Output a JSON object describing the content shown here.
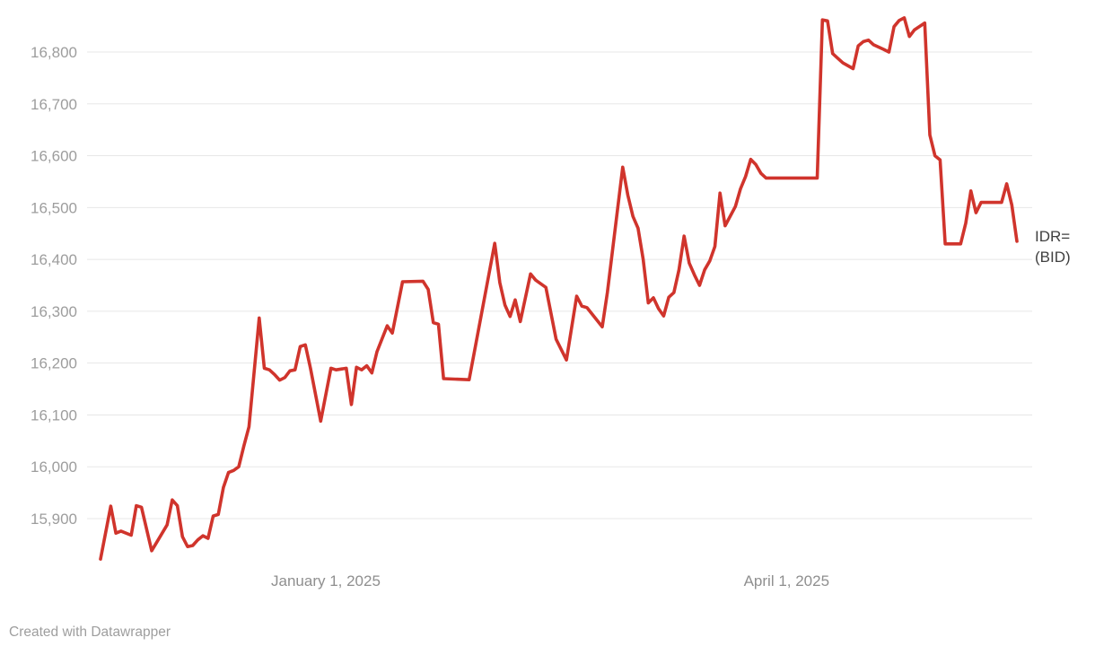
{
  "attribution": {
    "text": "Created with Datawrapper"
  },
  "chart_data": {
    "type": "line",
    "title": "",
    "xlabel": "",
    "ylabel": "",
    "grid": "horizontal-only",
    "legend_position": "line-end-right",
    "colors": {
      "line": "#d0342c",
      "grid": "#e7e7e7",
      "y_tick_label": "#9d9d9d",
      "x_tick_label": "#8f8f8f",
      "end_label": "#404040",
      "background": "#ffffff"
    },
    "x_axis": {
      "range": [
        "2024-11-18",
        "2025-05-16"
      ],
      "ticks": [
        {
          "date": "2025-01-01",
          "label": "January 1, 2025"
        },
        {
          "date": "2025-04-01",
          "label": "April 1, 2025"
        }
      ]
    },
    "y_axis": {
      "range": [
        15790,
        16900
      ],
      "ticks": [
        {
          "v": 15900,
          "label": "15,900"
        },
        {
          "v": 16000,
          "label": "16,000"
        },
        {
          "v": 16100,
          "label": "16,100"
        },
        {
          "v": 16200,
          "label": "16,200"
        },
        {
          "v": 16300,
          "label": "16,300"
        },
        {
          "v": 16400,
          "label": "16,400"
        },
        {
          "v": 16500,
          "label": "16,500"
        },
        {
          "v": 16600,
          "label": "16,600"
        },
        {
          "v": 16700,
          "label": "16,700"
        },
        {
          "v": 16800,
          "label": "16,800"
        }
      ]
    },
    "series": [
      {
        "name": "IDR= (BID)",
        "end_label_lines": [
          "IDR=",
          "(BID)"
        ],
        "points": [
          [
            "2024-11-18",
            15822
          ],
          [
            "2024-11-20",
            15924
          ],
          [
            "2024-11-21",
            15872
          ],
          [
            "2024-11-22",
            15876
          ],
          [
            "2024-11-24",
            15868
          ],
          [
            "2024-11-25",
            15925
          ],
          [
            "2024-11-26",
            15922
          ],
          [
            "2024-11-28",
            15838
          ],
          [
            "2024-12-01",
            15888
          ],
          [
            "2024-12-02",
            15936
          ],
          [
            "2024-12-03",
            15925
          ],
          [
            "2024-12-04",
            15865
          ],
          [
            "2024-12-05",
            15846
          ],
          [
            "2024-12-06",
            15848
          ],
          [
            "2024-12-07",
            15859
          ],
          [
            "2024-12-08",
            15867
          ],
          [
            "2024-12-09",
            15862
          ],
          [
            "2024-12-10",
            15905
          ],
          [
            "2024-12-11",
            15908
          ],
          [
            "2024-12-12",
            15960
          ],
          [
            "2024-12-13",
            15989
          ],
          [
            "2024-12-14",
            15993
          ],
          [
            "2024-12-15",
            16000
          ],
          [
            "2024-12-16",
            16040
          ],
          [
            "2024-12-17",
            16077
          ],
          [
            "2024-12-19",
            16287
          ],
          [
            "2024-12-20",
            16190
          ],
          [
            "2024-12-21",
            16187
          ],
          [
            "2024-12-22",
            16178
          ],
          [
            "2024-12-23",
            16167
          ],
          [
            "2024-12-24",
            16172
          ],
          [
            "2024-12-25",
            16185
          ],
          [
            "2024-12-26",
            16187
          ],
          [
            "2024-12-27",
            16232
          ],
          [
            "2024-12-28",
            16235
          ],
          [
            "2024-12-29",
            16190
          ],
          [
            "2024-12-31",
            16088
          ],
          [
            "2025-01-02",
            16190
          ],
          [
            "2025-01-03",
            16187
          ],
          [
            "2025-01-05",
            16190
          ],
          [
            "2025-01-06",
            16120
          ],
          [
            "2025-01-07",
            16192
          ],
          [
            "2025-01-08",
            16187
          ],
          [
            "2025-01-09",
            16195
          ],
          [
            "2025-01-10",
            16181
          ],
          [
            "2025-01-11",
            16222
          ],
          [
            "2025-01-13",
            16272
          ],
          [
            "2025-01-14",
            16258
          ],
          [
            "2025-01-16",
            16357
          ],
          [
            "2025-01-20",
            16358
          ],
          [
            "2025-01-21",
            16342
          ],
          [
            "2025-01-22",
            16278
          ],
          [
            "2025-01-23",
            16275
          ],
          [
            "2025-01-24",
            16170
          ],
          [
            "2025-01-29",
            16168
          ],
          [
            "2025-02-03",
            16431
          ],
          [
            "2025-02-04",
            16355
          ],
          [
            "2025-02-05",
            16312
          ],
          [
            "2025-02-06",
            16290
          ],
          [
            "2025-02-07",
            16322
          ],
          [
            "2025-02-08",
            16280
          ],
          [
            "2025-02-10",
            16372
          ],
          [
            "2025-02-11",
            16360
          ],
          [
            "2025-02-13",
            16346
          ],
          [
            "2025-02-15",
            16246
          ],
          [
            "2025-02-17",
            16206
          ],
          [
            "2025-02-19",
            16329
          ],
          [
            "2025-02-20",
            16310
          ],
          [
            "2025-02-21",
            16307
          ],
          [
            "2025-02-24",
            16270
          ],
          [
            "2025-02-25",
            16336
          ],
          [
            "2025-02-28",
            16578
          ],
          [
            "2025-03-01",
            16524
          ],
          [
            "2025-03-02",
            16483
          ],
          [
            "2025-03-03",
            16460
          ],
          [
            "2025-03-04",
            16400
          ],
          [
            "2025-03-05",
            16316
          ],
          [
            "2025-03-06",
            16326
          ],
          [
            "2025-03-07",
            16305
          ],
          [
            "2025-03-08",
            16291
          ],
          [
            "2025-03-09",
            16327
          ],
          [
            "2025-03-10",
            16336
          ],
          [
            "2025-03-11",
            16380
          ],
          [
            "2025-03-12",
            16445
          ],
          [
            "2025-03-13",
            16393
          ],
          [
            "2025-03-14",
            16370
          ],
          [
            "2025-03-15",
            16350
          ],
          [
            "2025-03-16",
            16380
          ],
          [
            "2025-03-17",
            16397
          ],
          [
            "2025-03-18",
            16425
          ],
          [
            "2025-03-19",
            16528
          ],
          [
            "2025-03-20",
            16465
          ],
          [
            "2025-03-22",
            16502
          ],
          [
            "2025-03-23",
            16536
          ],
          [
            "2025-03-24",
            16560
          ],
          [
            "2025-03-25",
            16593
          ],
          [
            "2025-03-26",
            16583
          ],
          [
            "2025-03-27",
            16566
          ],
          [
            "2025-03-28",
            16557
          ],
          [
            "2025-04-07",
            16557
          ],
          [
            "2025-04-08",
            16862
          ],
          [
            "2025-04-09",
            16860
          ],
          [
            "2025-04-10",
            16797
          ],
          [
            "2025-04-11",
            16788
          ],
          [
            "2025-04-12",
            16779
          ],
          [
            "2025-04-14",
            16768
          ],
          [
            "2025-04-15",
            16812
          ],
          [
            "2025-04-16",
            16820
          ],
          [
            "2025-04-17",
            16823
          ],
          [
            "2025-04-18",
            16814
          ],
          [
            "2025-04-20",
            16805
          ],
          [
            "2025-04-21",
            16800
          ],
          [
            "2025-04-22",
            16849
          ],
          [
            "2025-04-23",
            16861
          ],
          [
            "2025-04-24",
            16866
          ],
          [
            "2025-04-25",
            16830
          ],
          [
            "2025-04-26",
            16843
          ],
          [
            "2025-04-28",
            16856
          ],
          [
            "2025-04-29",
            16640
          ],
          [
            "2025-04-30",
            16600
          ],
          [
            "2025-05-01",
            16592
          ],
          [
            "2025-05-02",
            16430
          ],
          [
            "2025-05-05",
            16430
          ],
          [
            "2025-05-06",
            16470
          ],
          [
            "2025-05-07",
            16532
          ],
          [
            "2025-05-08",
            16490
          ],
          [
            "2025-05-09",
            16510
          ],
          [
            "2025-05-13",
            16510
          ],
          [
            "2025-05-14",
            16546
          ],
          [
            "2025-05-15",
            16505
          ],
          [
            "2025-05-16",
            16435
          ]
        ]
      }
    ]
  }
}
